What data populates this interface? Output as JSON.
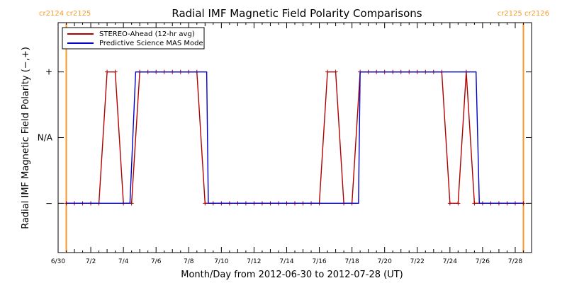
{
  "chart_data": {
    "type": "line",
    "title": "Radial IMF Magnetic Field Polarity Comparisons",
    "xlabel": "Month/Day from 2012-06-30 to 2012-07-28 (UT)",
    "ylabel": "Radial IMF Magnetic Field Polarity (−,+)",
    "xlim": [
      0,
      29
    ],
    "ylim": [
      -1.75,
      1.75
    ],
    "x_ticks": [
      {
        "x": 0,
        "label": "6/30"
      },
      {
        "x": 2,
        "label": "7/2"
      },
      {
        "x": 4,
        "label": "7/4"
      },
      {
        "x": 6,
        "label": "7/6"
      },
      {
        "x": 8,
        "label": "7/8"
      },
      {
        "x": 10,
        "label": "7/10"
      },
      {
        "x": 12,
        "label": "7/12"
      },
      {
        "x": 14,
        "label": "7/14"
      },
      {
        "x": 16,
        "label": "7/16"
      },
      {
        "x": 18,
        "label": "7/18"
      },
      {
        "x": 20,
        "label": "7/20"
      },
      {
        "x": 22,
        "label": "7/22"
      },
      {
        "x": 24,
        "label": "7/24"
      },
      {
        "x": 26,
        "label": "7/26"
      },
      {
        "x": 28,
        "label": "7/28"
      }
    ],
    "y_ticks": [
      {
        "y": 1,
        "label": "+"
      },
      {
        "y": 0,
        "label": "N/A"
      },
      {
        "y": -1,
        "label": "−"
      }
    ],
    "carrington_markers": [
      {
        "x": 0.5,
        "label": "cr2124 cr2125"
      },
      {
        "x": 28.5,
        "label": "cr2125 cr2126"
      }
    ],
    "legend_position": "top-left",
    "series": [
      {
        "name": "STEREO-Ahead (12-hr avg)",
        "color": "#b00000",
        "markers": true,
        "x": [
          0.5,
          1.0,
          1.5,
          2.0,
          2.5,
          3.0,
          3.5,
          4.0,
          4.5,
          5.0,
          5.5,
          6.0,
          6.5,
          7.0,
          7.5,
          8.0,
          8.5,
          9.0,
          9.5,
          10.0,
          10.5,
          11.0,
          11.5,
          12.0,
          12.5,
          13.0,
          13.5,
          14.0,
          14.5,
          15.0,
          15.5,
          16.0,
          16.5,
          17.0,
          17.5,
          18.0,
          18.5,
          19.0,
          19.5,
          20.0,
          20.5,
          21.0,
          21.5,
          22.0,
          22.5,
          23.0,
          23.5,
          24.0,
          24.5,
          25.0,
          25.5,
          26.0,
          26.5,
          27.0,
          27.5,
          28.0,
          28.5
        ],
        "y": [
          -1,
          -1,
          -1,
          -1,
          -1,
          1,
          1,
          -1,
          -1,
          1,
          1,
          1,
          1,
          1,
          1,
          1,
          1,
          -1,
          -1,
          -1,
          -1,
          -1,
          -1,
          -1,
          -1,
          -1,
          -1,
          -1,
          -1,
          -1,
          -1,
          -1,
          1,
          1,
          -1,
          -1,
          1,
          1,
          1,
          1,
          1,
          1,
          1,
          1,
          1,
          1,
          1,
          -1,
          -1,
          1,
          -1,
          -1,
          -1,
          -1,
          -1,
          -1,
          -1
        ]
      },
      {
        "name": "Predictive Science MAS Model",
        "color": "#0000cc",
        "markers": false,
        "x": [
          0.5,
          4.4,
          4.75,
          9.1,
          9.2,
          18.4,
          18.5,
          25.6,
          25.8,
          28.5
        ],
        "y": [
          -1,
          -1,
          1,
          1,
          -1,
          -1,
          1,
          1,
          -1,
          -1
        ]
      }
    ]
  }
}
